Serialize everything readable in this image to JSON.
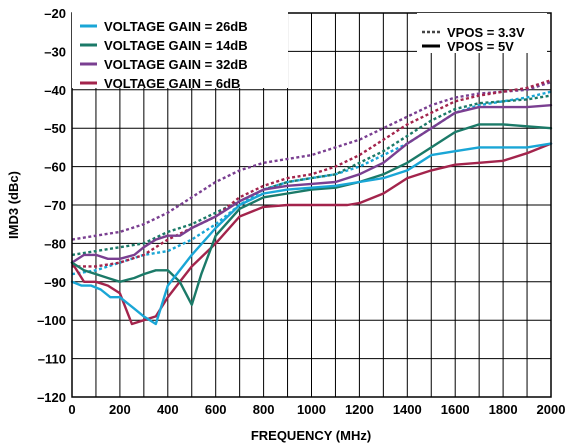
{
  "chart_data": {
    "type": "line",
    "title": "",
    "xlabel": "FREQUENCY (MHz)",
    "ylabel": "IMD3 (dBc)",
    "xlim": [
      0,
      2000
    ],
    "ylim": [
      -120,
      -20
    ],
    "xticks": [
      "0",
      "200",
      "400",
      "600",
      "800",
      "1000",
      "1200",
      "1400",
      "1600",
      "1800",
      "2000"
    ],
    "yticks": [
      "–20",
      "–30",
      "–40",
      "–50",
      "–60",
      "–70",
      "–80",
      "–90",
      "–100",
      "–110",
      "–120"
    ],
    "grid": true,
    "legend_gain": {
      "placement": "top-left",
      "entries": [
        {
          "label": "VOLTAGE GAIN = 26dB",
          "color": "#1aa6d6"
        },
        {
          "label": "VOLTAGE GAIN = 14dB",
          "color": "#1b7a68"
        },
        {
          "label": "VOLTAGE GAIN = 32dB",
          "color": "#7a3f91"
        },
        {
          "label": "VOLTAGE GAIN = 6dB",
          "color": "#a3244c"
        }
      ]
    },
    "legend_vpos": {
      "placement": "top-right",
      "entries": [
        {
          "label": "VPOS = 3.3V",
          "style": "dashed"
        },
        {
          "label": "VPOS = 5V",
          "style": "solid"
        }
      ]
    },
    "series": [
      {
        "gain": "26dB",
        "vpos": "5V",
        "color": "#1aa6d6",
        "style": "solid",
        "x": [
          0,
          40,
          80,
          120,
          160,
          200,
          260,
          300,
          350,
          400,
          450,
          500,
          600,
          700,
          800,
          900,
          1000,
          1100,
          1200,
          1300,
          1400,
          1450,
          1500,
          1600,
          1700,
          1800,
          1900,
          2000
        ],
        "y": [
          -90,
          -91,
          -91,
          -92,
          -94,
          -94,
          -97,
          -99,
          -101,
          -91,
          -87,
          -83,
          -76,
          -70,
          -67,
          -66,
          -65.5,
          -65,
          -64,
          -63,
          -61,
          -59,
          -57,
          -56,
          -55,
          -55,
          -55,
          -54
        ]
      },
      {
        "gain": "14dB",
        "vpos": "5V",
        "color": "#1b7a68",
        "style": "solid",
        "x": [
          0,
          50,
          100,
          150,
          200,
          260,
          300,
          350,
          400,
          450,
          500,
          540,
          600,
          700,
          800,
          900,
          1000,
          1100,
          1200,
          1300,
          1400,
          1500,
          1600,
          1700,
          1800,
          1900,
          2000
        ],
        "y": [
          -85,
          -87,
          -88,
          -89,
          -90,
          -89,
          -88,
          -87,
          -87,
          -90,
          -96,
          -88,
          -78,
          -71,
          -68,
          -67,
          -66,
          -65.5,
          -64,
          -62,
          -59,
          -55,
          -51,
          -49,
          -49,
          -49.5,
          -50
        ]
      },
      {
        "gain": "32dB",
        "vpos": "5V",
        "color": "#7a3f91",
        "style": "solid",
        "x": [
          0,
          50,
          100,
          150,
          200,
          260,
          300,
          350,
          400,
          450,
          500,
          600,
          700,
          800,
          900,
          1000,
          1100,
          1200,
          1300,
          1400,
          1500,
          1600,
          1700,
          1800,
          1900,
          2000
        ],
        "y": [
          -85,
          -83,
          -83,
          -84,
          -84,
          -83,
          -81,
          -79,
          -78,
          -78,
          -76,
          -73,
          -69,
          -66,
          -65,
          -64.5,
          -64,
          -62,
          -59,
          -54,
          -50,
          -46,
          -44.5,
          -44.5,
          -44.5,
          -44
        ]
      },
      {
        "gain": "6dB",
        "vpos": "5V",
        "color": "#a3244c",
        "style": "solid",
        "x": [
          0,
          50,
          100,
          150,
          200,
          250,
          300,
          350,
          400,
          450,
          500,
          600,
          700,
          800,
          900,
          1000,
          1100,
          1150,
          1200,
          1300,
          1400,
          1500,
          1600,
          1700,
          1800,
          1900,
          2000
        ],
        "y": [
          -85,
          -90,
          -90,
          -91,
          -93,
          -101,
          -100,
          -99,
          -94,
          -90,
          -86,
          -80,
          -73,
          -70.5,
          -70,
          -70,
          -70,
          -70,
          -69.5,
          -67,
          -63,
          -61,
          -59.5,
          -59,
          -58.5,
          -56.5,
          -54
        ]
      },
      {
        "gain": "26dB",
        "vpos": "3.3V",
        "color": "#1aa6d6",
        "style": "dashed",
        "x": [
          0,
          100,
          200,
          300,
          400,
          500,
          600,
          700,
          800,
          900,
          1000,
          1100,
          1200,
          1300,
          1400,
          1500,
          1600,
          1700,
          1800,
          1900,
          2000
        ],
        "y": [
          -88,
          -87,
          -85,
          -83,
          -82,
          -79,
          -75,
          -70,
          -66,
          -64,
          -63,
          -62,
          -60,
          -57,
          -54,
          -50,
          -46,
          -44,
          -43,
          -42,
          -40.5
        ]
      },
      {
        "gain": "14dB",
        "vpos": "3.3V",
        "color": "#1b7a68",
        "style": "dashed",
        "x": [
          0,
          100,
          200,
          300,
          400,
          500,
          600,
          700,
          800,
          900,
          1000,
          1100,
          1200,
          1300,
          1400,
          1500,
          1600,
          1700,
          1800,
          1900,
          2000
        ],
        "y": [
          -83,
          -82,
          -81,
          -80,
          -77,
          -75,
          -72,
          -69,
          -66,
          -64,
          -63,
          -62,
          -59,
          -56,
          -52,
          -48,
          -45,
          -43.5,
          -43,
          -42.5,
          -41.5
        ]
      },
      {
        "gain": "32dB",
        "vpos": "3.3V",
        "color": "#7a3f91",
        "style": "dashed",
        "x": [
          0,
          100,
          200,
          300,
          400,
          500,
          600,
          700,
          800,
          900,
          1000,
          1100,
          1200,
          1300,
          1400,
          1500,
          1600,
          1700,
          1800,
          1900,
          2000
        ],
        "y": [
          -79,
          -78,
          -77,
          -75,
          -72,
          -68,
          -64,
          -61,
          -59,
          -58,
          -57,
          -55,
          -53,
          -50,
          -47,
          -44,
          -42,
          -41,
          -40.5,
          -40,
          -38
        ]
      },
      {
        "gain": "6dB",
        "vpos": "3.3V",
        "color": "#a3244c",
        "style": "dashed",
        "x": [
          0,
          100,
          200,
          300,
          400,
          500,
          600,
          700,
          800,
          900,
          1000,
          1100,
          1200,
          1300,
          1400,
          1500,
          1600,
          1700,
          1800,
          1900,
          2000
        ],
        "y": [
          -86,
          -86,
          -85,
          -83,
          -79,
          -76,
          -73,
          -68,
          -65,
          -63,
          -62,
          -60,
          -57,
          -53,
          -49,
          -46,
          -43,
          -41.5,
          -40.5,
          -39.5,
          -37.5
        ]
      }
    ]
  }
}
